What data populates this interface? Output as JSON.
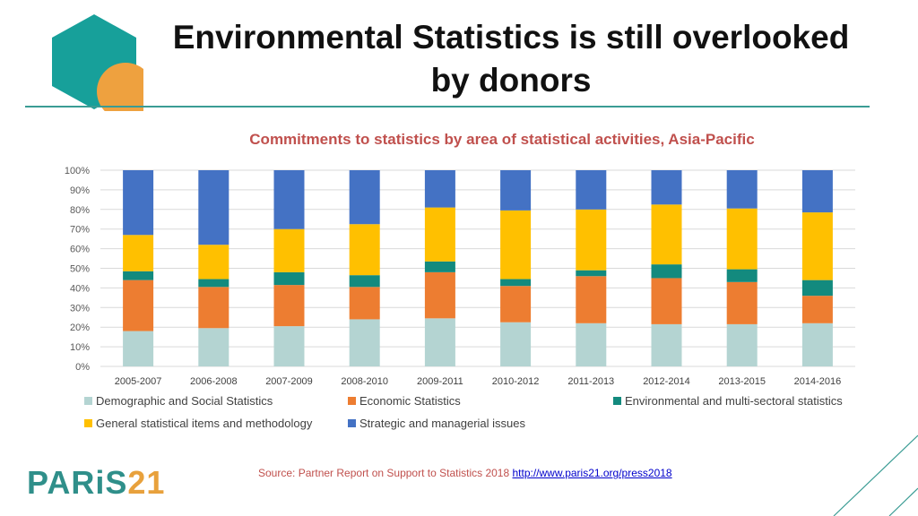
{
  "title": "Environmental Statistics is still overlooked by donors",
  "subtitle": "Commitments to statistics by area of statistical activities, Asia-Pacific",
  "chart_data": {
    "type": "bar",
    "stacked": true,
    "title": "Commitments to statistics by area of statistical activities, Asia-Pacific",
    "xlabel": "",
    "ylabel": "",
    "ylim": [
      0,
      100
    ],
    "y_ticks": [
      "0%",
      "10%",
      "20%",
      "30%",
      "40%",
      "50%",
      "60%",
      "70%",
      "80%",
      "90%",
      "100%"
    ],
    "categories": [
      "2005-2007",
      "2006-2008",
      "2007-2009",
      "2008-2010",
      "2009-2011",
      "2010-2012",
      "2011-2013",
      "2012-2014",
      "2013-2015",
      "2014-2016"
    ],
    "series": [
      {
        "name": "Demographic and Social Statistics",
        "color": "#b4d4d2",
        "values": [
          18,
          19.5,
          20.5,
          24,
          24.5,
          22.5,
          22,
          21.5,
          21.5,
          22
        ]
      },
      {
        "name": "Economic Statistics",
        "color": "#ed7d31",
        "values": [
          26,
          21,
          21,
          16.5,
          23.5,
          18.5,
          24,
          23.5,
          21.5,
          14
        ]
      },
      {
        "name": "Environmental and multi-sectoral statistics",
        "color": "#138a7e",
        "values": [
          4.5,
          4,
          6.5,
          6,
          5.5,
          3.5,
          3,
          7,
          6.5,
          8
        ]
      },
      {
        "name": "General statistical items and methodology",
        "color": "#ffc000",
        "values": [
          18.5,
          17.5,
          22,
          26,
          27.5,
          35,
          31,
          30.5,
          31,
          34.5
        ]
      },
      {
        "name": "Strategic and managerial issues",
        "color": "#4472c4",
        "values": [
          33,
          38,
          30,
          27.5,
          19,
          20.5,
          20,
          17.5,
          19.5,
          21.5
        ]
      }
    ],
    "grid": true,
    "legend_position": "bottom"
  },
  "logo": {
    "part1": "PARiS",
    "part2": "21"
  },
  "source": {
    "text": "Source: Partner Report on Support to Statistics 2018",
    "link": "http://www.paris21.org/press2018"
  }
}
